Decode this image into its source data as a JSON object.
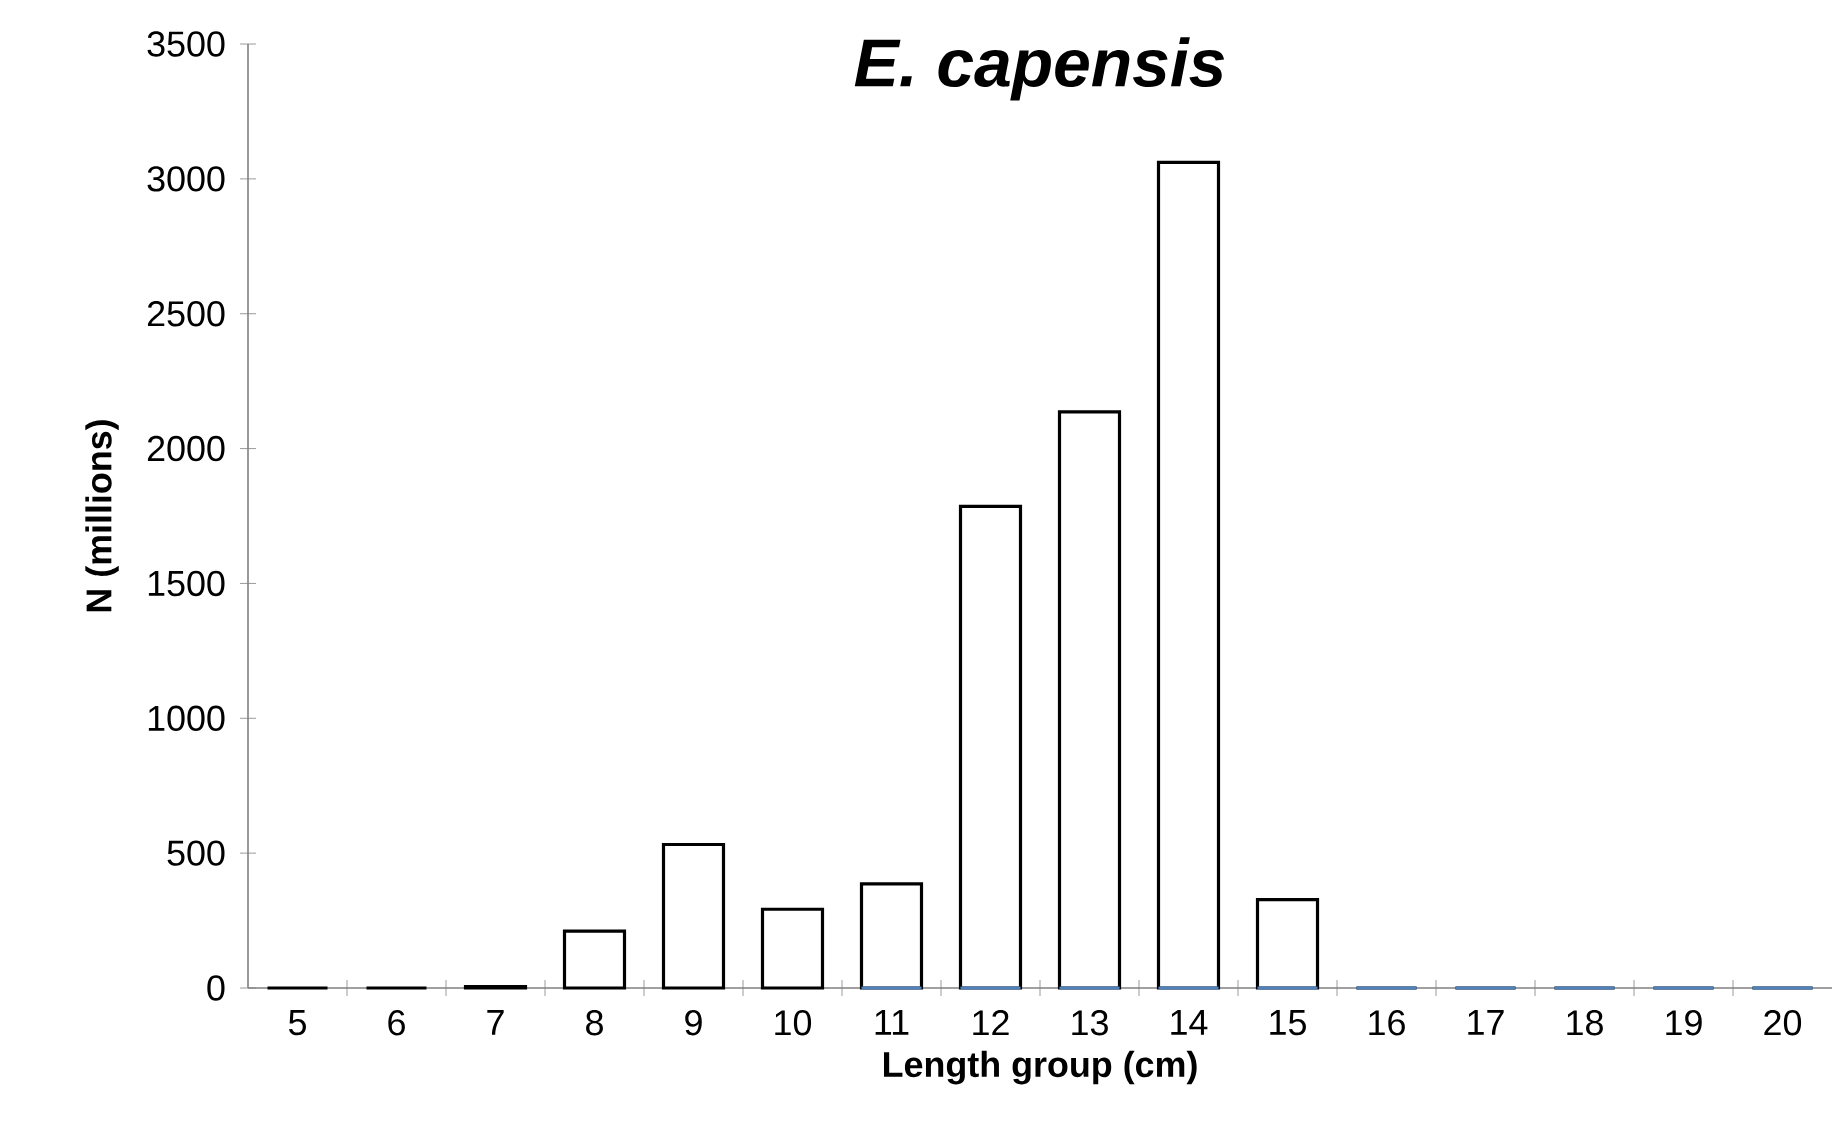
{
  "chart_data": {
    "type": "bar",
    "title": "E. capensis",
    "xlabel": "Length group (cm)",
    "ylabel": "N (millions)",
    "categories": [
      "5",
      "6",
      "7",
      "8",
      "9",
      "10",
      "11",
      "12",
      "13",
      "14",
      "15",
      "16",
      "17",
      "18",
      "19",
      "20"
    ],
    "series": [
      {
        "color": "#000000",
        "values": [
          0,
          0,
          5,
          211,
          532,
          292,
          386,
          1786,
          2136,
          3061,
          328,
          0,
          0,
          0,
          0,
          0
        ]
      },
      {
        "color": "#4f81bd",
        "values": [
          null,
          null,
          null,
          null,
          null,
          null,
          0,
          0,
          0,
          0,
          0,
          0,
          0,
          0,
          0,
          0
        ]
      }
    ],
    "ylim": [
      0,
      3500
    ],
    "yticks": [
      0,
      500,
      1000,
      1500,
      2000,
      2500,
      3000,
      3500
    ],
    "grid": false
  }
}
